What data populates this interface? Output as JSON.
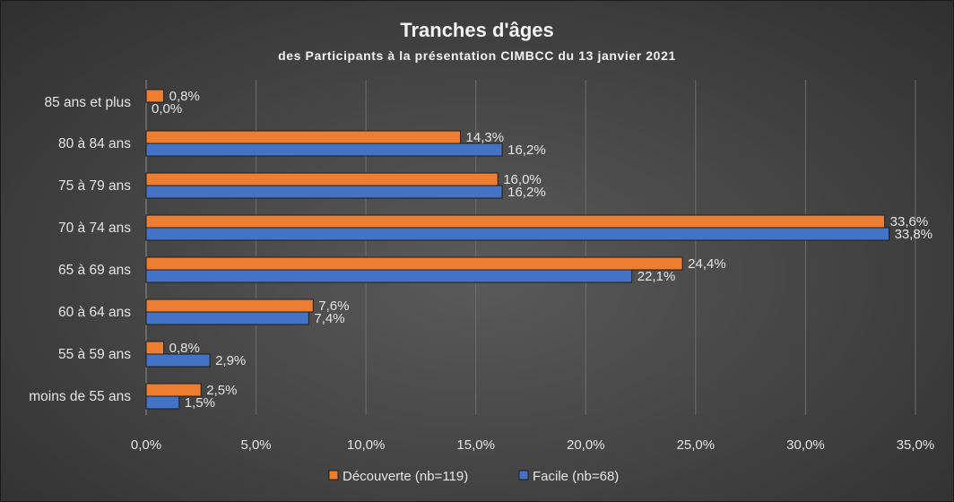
{
  "chart_data": {
    "type": "bar",
    "orientation": "horizontal",
    "title": "Tranches d'âges",
    "subtitle": "des Participants à la présentation CIMBCC du 13 janvier 2021",
    "categories": [
      "85 ans et plus",
      "80 à 84 ans",
      "75 à 79 ans",
      "70 à 74 ans",
      "65 à 69 ans",
      "60 à 64 ans",
      "55 à 59 ans",
      "moins de 55 ans"
    ],
    "series": [
      {
        "name": "Découverte (nb=119)",
        "color": "#ed7d31",
        "values": [
          0.8,
          14.3,
          16.0,
          33.6,
          24.4,
          7.6,
          0.8,
          2.5
        ],
        "labels": [
          "0,8%",
          "14,3%",
          "16,0%",
          "33,6%",
          "24,4%",
          "7,6%",
          "0,8%",
          "2,5%"
        ]
      },
      {
        "name": "Facile (nb=68)",
        "color": "#4472c4",
        "values": [
          0.0,
          16.2,
          16.2,
          33.8,
          22.1,
          7.4,
          2.9,
          1.5
        ],
        "labels": [
          "0,0%",
          "16,2%",
          "16,2%",
          "33,8%",
          "22,1%",
          "7,4%",
          "2,9%",
          "1,5%"
        ]
      }
    ],
    "xlim": [
      0,
      35
    ],
    "xticks": [
      0,
      5,
      10,
      15,
      20,
      25,
      30,
      35
    ],
    "xtick_labels": [
      "0,0%",
      "5,0%",
      "10,0%",
      "15,0%",
      "20,0%",
      "25,0%",
      "30,0%",
      "35,0%"
    ],
    "xlabel": "",
    "ylabel": "",
    "grid": true,
    "legend_position": "bottom"
  }
}
